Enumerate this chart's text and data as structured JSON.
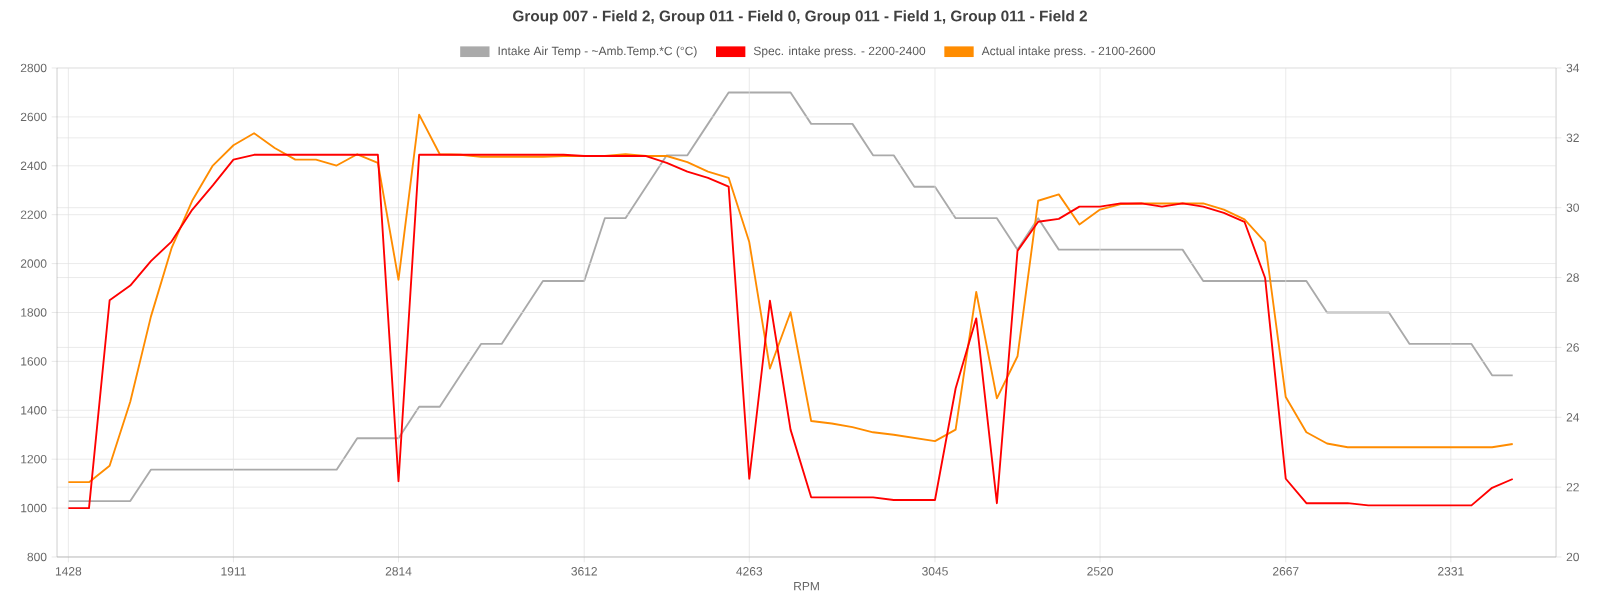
{
  "chart_data": {
    "type": "line",
    "title": "Group 007 - Field 2, Group 011 - Field 0, Group 011 - Field 1, Group 011 - Field 2",
    "xlabel": "RPM",
    "categories": [
      "1428",
      null,
      null,
      null,
      null,
      null,
      null,
      null,
      "1911",
      null,
      null,
      null,
      null,
      null,
      null,
      null,
      "2814",
      null,
      null,
      null,
      null,
      null,
      null,
      null,
      null,
      "3612",
      null,
      null,
      null,
      null,
      null,
      null,
      null,
      "4263",
      null,
      null,
      null,
      null,
      null,
      null,
      null,
      null,
      "3045",
      null,
      null,
      null,
      null,
      null,
      null,
      null,
      "2520",
      null,
      null,
      null,
      null,
      null,
      null,
      null,
      null,
      "2667",
      null,
      null,
      null,
      null,
      null,
      null,
      null,
      "2331",
      null,
      null,
      null
    ],
    "ylim": [
      800,
      2800
    ],
    "yticks": [
      800,
      1000,
      1200,
      1400,
      1600,
      1800,
      2000,
      2200,
      2400,
      2600,
      2800
    ],
    "y2lim": [
      20,
      34
    ],
    "y2ticks": [
      20,
      22,
      24,
      26,
      28,
      30,
      32,
      34
    ],
    "grid": true,
    "legend": "top",
    "marker": "none",
    "line_style": "solid",
    "series": [
      {
        "name": "Intake Air Temp - ~Amb.Temp.*C (°C)",
        "color": "#aaaaaa",
        "axis": "y2",
        "values": [
          21.6,
          21.6,
          21.6,
          21.6,
          22.5,
          22.5,
          22.5,
          22.5,
          22.5,
          22.5,
          22.5,
          22.5,
          22.5,
          22.5,
          23.4,
          23.4,
          23.4,
          24.3,
          24.3,
          25.2,
          26.1,
          26.1,
          27.0,
          27.9,
          27.9,
          27.9,
          29.7,
          29.7,
          30.6,
          31.5,
          31.5,
          32.4,
          33.3,
          33.3,
          33.3,
          33.3,
          32.4,
          32.4,
          32.4,
          31.5,
          31.5,
          30.6,
          30.6,
          29.7,
          29.7,
          29.7,
          28.8,
          29.7,
          28.8,
          28.8,
          28.8,
          28.8,
          28.8,
          28.8,
          28.8,
          27.9,
          27.9,
          27.9,
          27.9,
          27.9,
          27.9,
          27.0,
          27.0,
          27.0,
          27.0,
          26.1,
          26.1,
          26.1,
          26.1,
          25.2,
          25.2
        ]
      },
      {
        "name": "Spec. intake press. - 2200-2400",
        "color": "#ff0000",
        "values": [
          1000,
          1000,
          1850,
          1910,
          2010,
          2090,
          2220,
          2320,
          2425,
          2445,
          2445,
          2445,
          2445,
          2445,
          2445,
          2445,
          1110,
          2445,
          2445,
          2445,
          2445,
          2445,
          2445,
          2445,
          2445,
          2440,
          2440,
          2440,
          2440,
          2412,
          2376,
          2351,
          2315,
          1120,
          1848,
          1321,
          1044,
          1044,
          1044,
          1044,
          1033,
          1033,
          1033,
          1489,
          1776,
          1020,
          2052,
          2171,
          2183,
          2233,
          2233,
          2246,
          2246,
          2233,
          2246,
          2233,
          2207,
          2171,
          1941,
          1120,
          1020,
          1020,
          1020,
          1011,
          1011,
          1011,
          1011,
          1011,
          1011,
          1083,
          1119
        ]
      },
      {
        "name": "Actual intake press. - 2100-2600",
        "color": "#ff8c00",
        "values": [
          1106,
          1106,
          1173,
          1435,
          1783,
          2063,
          2257,
          2401,
          2484,
          2533,
          2473,
          2425,
          2425,
          2401,
          2447,
          2412,
          1934,
          2609,
          2447,
          2445,
          2437,
          2437,
          2437,
          2437,
          2440,
          2440,
          2440,
          2447,
          2440,
          2440,
          2415,
          2376,
          2351,
          2088,
          1571,
          1801,
          1356,
          1346,
          1331,
          1310,
          1300,
          1287,
          1274,
          1321,
          1884,
          1449,
          1621,
          2257,
          2283,
          2160,
          2221,
          2243,
          2246,
          2246,
          2246,
          2246,
          2221,
          2181,
          2088,
          1454,
          1310,
          1264,
          1249,
          1249,
          1249,
          1249,
          1249,
          1249,
          1249,
          1249,
          1262
        ]
      }
    ]
  }
}
